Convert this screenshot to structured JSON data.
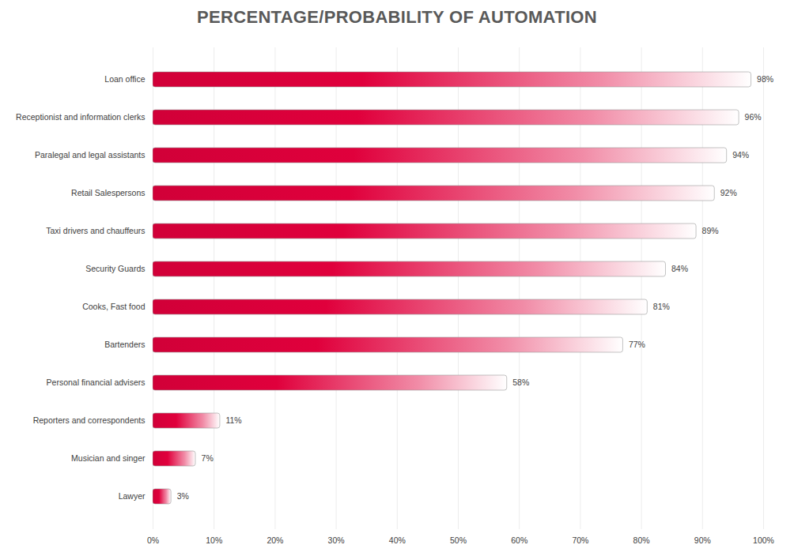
{
  "chart_data": {
    "type": "bar",
    "title": "PERCENTAGE/PROBABILITY OF AUTOMATION",
    "orientation": "horizontal",
    "categories": [
      "Loan office",
      "Receptionist and information clerks",
      "Paralegal and legal assistants",
      "Retail Salespersons",
      "Taxi drivers and chauffeurs",
      "Security Guards",
      "Cooks, Fast food",
      "Bartenders",
      "Personal financial advisers",
      "Reporters and correspondents",
      "Musician and singer",
      "Lawyer"
    ],
    "values": [
      98,
      96,
      94,
      92,
      89,
      84,
      81,
      77,
      58,
      11,
      7,
      3
    ],
    "value_labels": [
      "98%",
      "96%",
      "94%",
      "92%",
      "89%",
      "84%",
      "81%",
      "77%",
      "58%",
      "11%",
      "7%",
      "3%"
    ],
    "data_labels": true,
    "color": "#e0003c",
    "xlim": [
      0,
      100
    ],
    "xticks": [
      {
        "value": 0,
        "label": "0%"
      },
      {
        "value": 10,
        "label": "10%"
      },
      {
        "value": 20,
        "label": "20%"
      },
      {
        "value": 30,
        "label": "30%"
      },
      {
        "value": 40,
        "label": "40%"
      },
      {
        "value": 50,
        "label": "50%"
      },
      {
        "value": 60,
        "label": "60%"
      },
      {
        "value": 70,
        "label": "70%"
      },
      {
        "value": 80,
        "label": "80%"
      },
      {
        "value": 90,
        "label": "90%"
      },
      {
        "value": 100,
        "label": "100%"
      }
    ],
    "grid": true
  }
}
